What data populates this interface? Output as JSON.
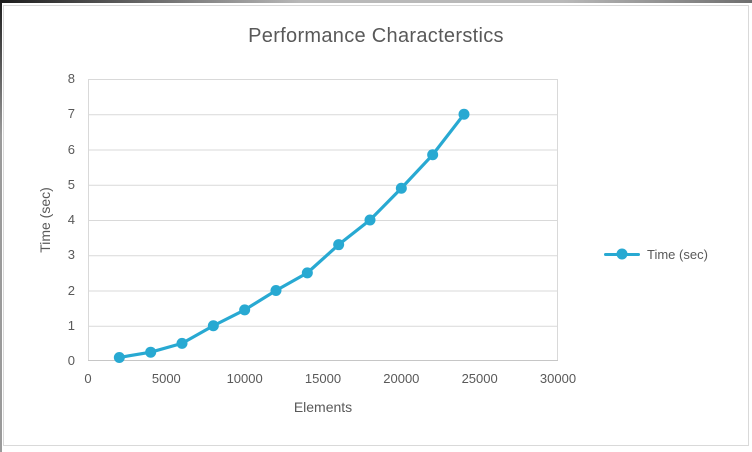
{
  "chart_data": {
    "type": "line",
    "title": "Performance Characterstics",
    "xlabel": "Elements",
    "ylabel": "Time (sec)",
    "legend_position": "right",
    "grid": "horizontal-major",
    "xlim": [
      0,
      30000
    ],
    "ylim": [
      0,
      8
    ],
    "xticks": [
      {
        "value": 0,
        "label": "0"
      },
      {
        "value": 5000,
        "label": "5000"
      },
      {
        "value": 10000,
        "label": "10000"
      },
      {
        "value": 15000,
        "label": "15000"
      },
      {
        "value": 20000,
        "label": "20000"
      },
      {
        "value": 25000,
        "label": "25000"
      },
      {
        "value": 30000,
        "label": "30000"
      }
    ],
    "yticks": [
      {
        "value": 0,
        "label": "0"
      },
      {
        "value": 1,
        "label": "1"
      },
      {
        "value": 2,
        "label": "2"
      },
      {
        "value": 3,
        "label": "3"
      },
      {
        "value": 4,
        "label": "4"
      },
      {
        "value": 5,
        "label": "5"
      },
      {
        "value": 6,
        "label": "6"
      },
      {
        "value": 7,
        "label": "7"
      },
      {
        "value": 8,
        "label": "8"
      }
    ],
    "series": [
      {
        "name": "Time (sec)",
        "marker": "circle",
        "x": [
          2000,
          4000,
          6000,
          8000,
          10000,
          12000,
          14000,
          16000,
          18000,
          20000,
          22000,
          24000
        ],
        "y": [
          0.1,
          0.25,
          0.5,
          1.0,
          1.45,
          2.0,
          2.5,
          3.3,
          4.0,
          4.9,
          5.85,
          7.0
        ]
      }
    ],
    "colors": {
      "series": "#28A9D2",
      "gridline": "#D9D9D9",
      "plot_border": "#D9D9D9",
      "axis_line": "#C6C6C6",
      "text": "#595959"
    }
  }
}
